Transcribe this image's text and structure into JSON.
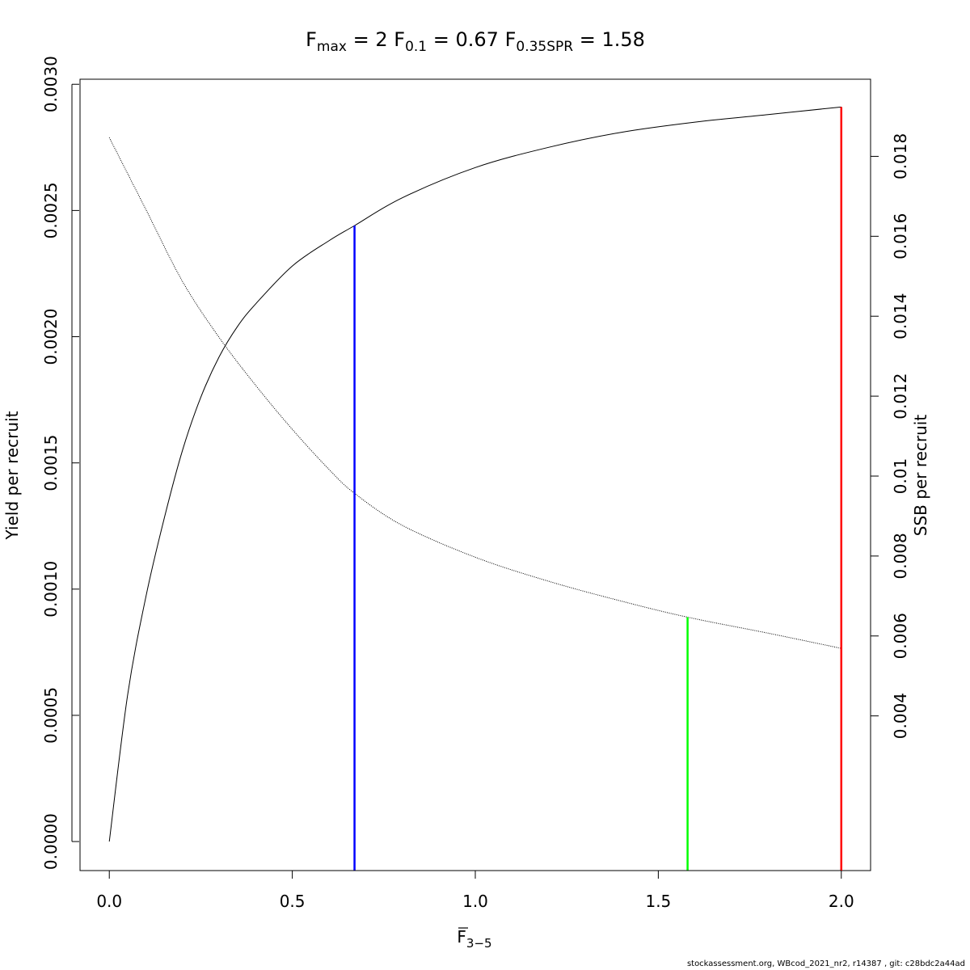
{
  "chart_data": {
    "type": "line",
    "title": {
      "fmax": {
        "sym": "F",
        "sub": "max",
        "value": "2"
      },
      "f01": {
        "sym": "F",
        "sub": "0.1",
        "value": "0.67"
      },
      "fspr": {
        "sym": "F",
        "sub": "0.35SPR",
        "value": "1.58"
      }
    },
    "xlabel": {
      "base": "F",
      "sub": "3−5"
    },
    "ylabel_left": "Yield per recruit",
    "ylabel_right": "SSB per recruit",
    "xlim": [
      -0.08,
      2.08
    ],
    "ylim_left": [
      -0.000115,
      0.00302
    ],
    "ylim_right": [
      0.00013,
      0.01993
    ],
    "x_ticks": [
      "0.0",
      "0.5",
      "1.0",
      "1.5",
      "2.0"
    ],
    "y_left_ticks": [
      "0.0000",
      "0.0005",
      "0.0010",
      "0.0015",
      "0.0020",
      "0.0025",
      "0.0030"
    ],
    "y_right_ticks": [
      "0.004",
      "0.006",
      "0.008",
      "0.01",
      "0.012",
      "0.014",
      "0.016",
      "0.018"
    ],
    "series": [
      {
        "axis": "left",
        "style": "solid",
        "color": "#000000",
        "x": [
          0,
          0.05,
          0.1,
          0.15,
          0.2,
          0.25,
          0.3,
          0.35,
          0.4,
          0.5,
          0.6,
          0.67,
          0.8,
          1.0,
          1.2,
          1.4,
          1.6,
          1.8,
          2.0
        ],
        "y": [
          0,
          0.00058,
          0.00097,
          0.00128,
          0.00155,
          0.00176,
          0.00192,
          0.00204,
          0.00213,
          0.00228,
          0.00238,
          0.00244,
          0.00255,
          0.00267,
          0.00275,
          0.00281,
          0.00285,
          0.00288,
          0.00291
        ]
      },
      {
        "axis": "right",
        "style": "dotted",
        "color": "#000000",
        "x": [
          0,
          0.1,
          0.2,
          0.3,
          0.4,
          0.5,
          0.6,
          0.67,
          0.8,
          1.0,
          1.2,
          1.4,
          1.58,
          1.8,
          2.0
        ],
        "y": [
          0.01847,
          0.01667,
          0.01487,
          0.01347,
          0.01227,
          0.01117,
          0.01017,
          0.00957,
          0.00877,
          0.00797,
          0.00737,
          0.00687,
          0.00647,
          0.00607,
          0.00569
        ]
      }
    ],
    "reference_lines": [
      {
        "x": 0.67,
        "color": "#0000ff",
        "to": "yield",
        "y": 0.00244
      },
      {
        "x": 1.58,
        "color": "#00ff00",
        "to": "ssb",
        "y": 0.00647
      },
      {
        "x": 2.0,
        "color": "#ff0000",
        "to": "yield",
        "y": 0.00291
      }
    ]
  },
  "footer": "stockassessment.org, WBcod_2021_nr2, r14387 , git: c28bdc2a44ad"
}
